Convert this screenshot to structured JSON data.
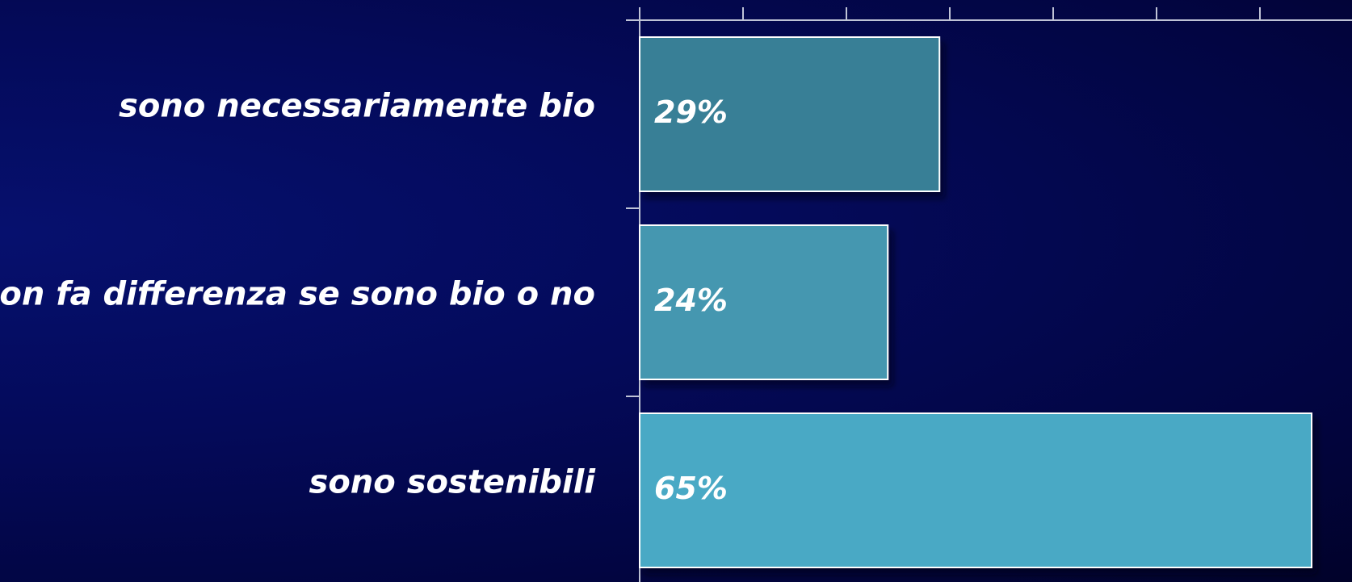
{
  "chart_data": {
    "type": "bar",
    "orientation": "horizontal",
    "categories": [
      "sono necessariamente bio",
      "non fa differenza se sono bio o no",
      "sono sostenibili"
    ],
    "values": [
      29,
      24,
      65
    ],
    "value_labels": [
      "29%",
      "24%",
      "65%"
    ],
    "xlim": [
      0,
      70
    ],
    "x_tick_step": 10,
    "title": "",
    "xlabel": "",
    "ylabel": "",
    "grid": false,
    "legend": "none",
    "colors": [
      "#377f96",
      "#4597b0",
      "#4aa9c5"
    ],
    "background": "#040a5a"
  }
}
